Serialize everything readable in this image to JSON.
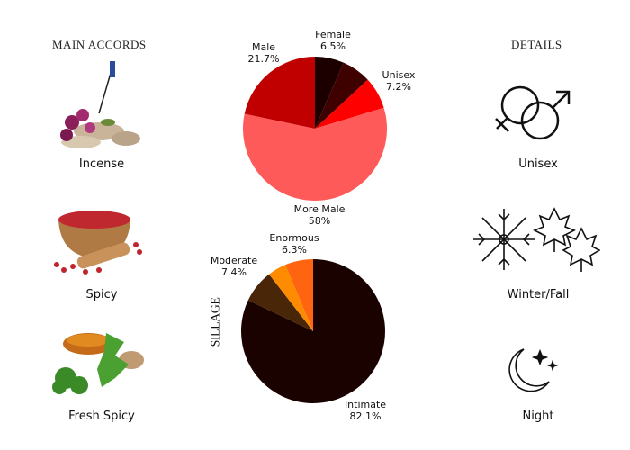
{
  "left": {
    "heading": "MAIN ACCORDS",
    "accords": [
      {
        "label": "Incense",
        "icon": "incense-image"
      },
      {
        "label": "Spicy",
        "icon": "peppercorn-bowl-image"
      },
      {
        "label": "Fresh Spicy",
        "icon": "herbs-spices-image"
      }
    ]
  },
  "right": {
    "heading": "DETAILS",
    "details": [
      {
        "label": "Unisex",
        "icon": "gender-symbols-icon"
      },
      {
        "label": "Winter/Fall",
        "icon": "snowflake-leaves-icon"
      },
      {
        "label": "Night",
        "icon": "moon-stars-icon"
      }
    ]
  },
  "chart_data": [
    {
      "type": "pie",
      "start": "12 o'clock, clockwise",
      "slices": [
        {
          "label": "Female",
          "value": 6.5,
          "display": "6.5%",
          "color": "#1c0000"
        },
        {
          "label": "",
          "value": 6.6,
          "display": "",
          "color": "#3f0000"
        },
        {
          "label": "Unisex",
          "value": 7.2,
          "display": "7.2%",
          "color": "#ff0000"
        },
        {
          "label": "More Male",
          "value": 58,
          "display": "58%",
          "color": "#ff5a5a"
        },
        {
          "label": "Male",
          "value": 21.7,
          "display": "21.7%",
          "color": "#c00000"
        }
      ]
    },
    {
      "type": "pie",
      "title": "SILLAGE",
      "start": "12 o'clock, clockwise",
      "slices": [
        {
          "label": "Intimate",
          "value": 82.1,
          "display": "82.1%",
          "color": "#1a0200"
        },
        {
          "label": "Moderate",
          "value": 7.4,
          "display": "7.4%",
          "color": "#4a2608"
        },
        {
          "label": "",
          "value": 4.2,
          "display": "",
          "color": "#ff8c00"
        },
        {
          "label": "Enormous",
          "value": 6.3,
          "display": "6.3%",
          "color": "#ff6410"
        }
      ]
    }
  ]
}
